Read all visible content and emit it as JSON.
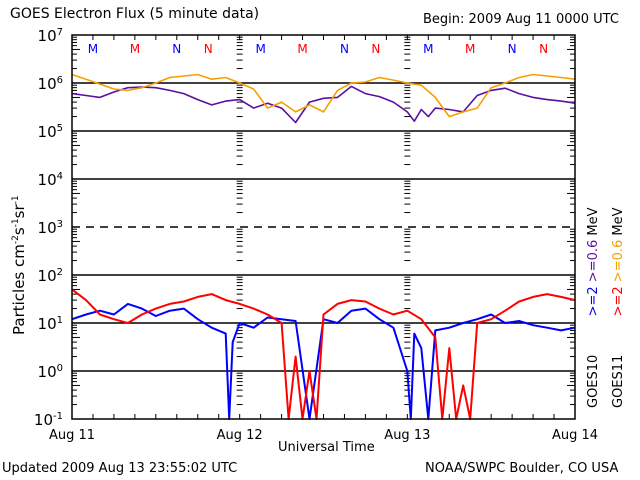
{
  "chart_data": {
    "type": "line",
    "title": "GOES Electron Flux (5 minute data)",
    "begin_label": "Begin: 2009 Aug 11 0000 UTC",
    "xlabel": "Universal Time",
    "ylabel": "Particles cm",
    "ylabel_units": [
      "-2",
      "s",
      "-1",
      "sr",
      "-1"
    ],
    "yscale": "log",
    "ylim": [
      0.1,
      10000000
    ],
    "y_ticks": [
      {
        "base": "10",
        "exp": "7",
        "value": 10000000
      },
      {
        "base": "10",
        "exp": "6",
        "value": 1000000
      },
      {
        "base": "10",
        "exp": "5",
        "value": 100000
      },
      {
        "base": "10",
        "exp": "4",
        "value": 10000
      },
      {
        "base": "10",
        "exp": "3",
        "value": 1000
      },
      {
        "base": "10",
        "exp": "2",
        "value": 100
      },
      {
        "base": "10",
        "exp": "1",
        "value": 10
      },
      {
        "base": "10",
        "exp": "0",
        "value": 1
      },
      {
        "base": "10",
        "exp": "-1",
        "value": 0.1
      }
    ],
    "x_range_hours": [
      0,
      72
    ],
    "x_ticks": [
      {
        "label": "Aug 11",
        "hour": 0
      },
      {
        "label": "Aug 12",
        "hour": 24
      },
      {
        "label": "Aug 13",
        "hour": 48
      },
      {
        "label": "Aug 14",
        "hour": 72
      }
    ],
    "grid": {
      "solid": [
        1000000,
        100000,
        10000,
        100,
        10,
        1
      ],
      "dashed": [
        1000
      ]
    },
    "day_markers": [
      {
        "label": "M",
        "hour": 3,
        "color": "#0000ff"
      },
      {
        "label": "M",
        "hour": 9,
        "color": "#ff0000"
      },
      {
        "label": "N",
        "hour": 15,
        "color": "#0000ff"
      },
      {
        "label": "N",
        "hour": 19.5,
        "color": "#ff0000"
      },
      {
        "label": "M",
        "hour": 27,
        "color": "#0000ff"
      },
      {
        "label": "M",
        "hour": 33,
        "color": "#ff0000"
      },
      {
        "label": "N",
        "hour": 39,
        "color": "#0000ff"
      },
      {
        "label": "N",
        "hour": 43.5,
        "color": "#ff0000"
      },
      {
        "label": "M",
        "hour": 51,
        "color": "#0000ff"
      },
      {
        "label": "M",
        "hour": 57,
        "color": "#ff0000"
      },
      {
        "label": "N",
        "hour": 63,
        "color": "#0000ff"
      },
      {
        "label": "N",
        "hour": 67.5,
        "color": "#ff0000"
      }
    ],
    "legend": [
      {
        "satellite": "GOES10",
        "channels": [
          {
            "label": ">=2",
            "color": "#0000ff"
          },
          {
            "label": ">=0.6",
            "color": "#5a0fa0"
          }
        ],
        "unit": "MeV"
      },
      {
        "satellite": "GOES11",
        "channels": [
          {
            "label": ">=2",
            "color": "#ff0000"
          },
          {
            "label": ">=0.6",
            "color": "#f5a000"
          }
        ],
        "unit": "MeV"
      }
    ],
    "series": [
      {
        "name": "GOES10 >=0.6 MeV",
        "color": "#5a0fa0",
        "hours": [
          0,
          2,
          4,
          6,
          8,
          10,
          12,
          14,
          16,
          18,
          20,
          22,
          24,
          26,
          28,
          30,
          32,
          34,
          36,
          38,
          40,
          42,
          44,
          46,
          48,
          49,
          50,
          51,
          52,
          54,
          56,
          58,
          60,
          62,
          64,
          66,
          68,
          70,
          72
        ],
        "values": [
          600000,
          550000,
          500000,
          650000,
          800000,
          820000,
          800000,
          700000,
          600000,
          450000,
          350000,
          420000,
          450000,
          300000,
          380000,
          300000,
          150000,
          400000,
          480000,
          500000,
          850000,
          600000,
          520000,
          400000,
          250000,
          160000,
          280000,
          200000,
          300000,
          280000,
          250000,
          550000,
          700000,
          780000,
          600000,
          500000,
          450000,
          420000,
          380000
        ]
      },
      {
        "name": "GOES11 >=0.6 MeV",
        "color": "#f5a000",
        "hours": [
          0,
          2,
          4,
          6,
          8,
          10,
          12,
          14,
          16,
          18,
          20,
          22,
          24,
          26,
          28,
          30,
          32,
          34,
          36,
          38,
          40,
          42,
          44,
          46,
          48,
          50,
          52,
          54,
          56,
          58,
          60,
          62,
          64,
          66,
          68,
          70,
          72
        ],
        "values": [
          1500000,
          1200000,
          950000,
          750000,
          700000,
          800000,
          1000000,
          1300000,
          1400000,
          1500000,
          1200000,
          1300000,
          1000000,
          750000,
          300000,
          400000,
          250000,
          350000,
          250000,
          700000,
          1000000,
          1050000,
          1300000,
          1150000,
          1000000,
          900000,
          500000,
          200000,
          250000,
          300000,
          800000,
          1000000,
          1300000,
          1500000,
          1400000,
          1300000,
          1200000
        ]
      },
      {
        "name": "GOES10 >=2 MeV",
        "color": "#0000ff",
        "hours": [
          0,
          2,
          4,
          6,
          8,
          10,
          12,
          14,
          16,
          18,
          20,
          22,
          22.5,
          23,
          24,
          26,
          28,
          30,
          32,
          34,
          36,
          38,
          40,
          42,
          44,
          46,
          48,
          48.5,
          49,
          50,
          51,
          52,
          54,
          56,
          58,
          60,
          62,
          64,
          66,
          68,
          70,
          72
        ],
        "values": [
          12,
          15,
          18,
          15,
          25,
          20,
          14,
          18,
          20,
          12,
          8,
          6,
          0.1,
          4,
          10,
          8,
          13,
          12,
          11,
          0.1,
          12,
          10,
          18,
          20,
          12,
          8,
          1,
          0.1,
          6,
          3,
          0.1,
          7,
          8,
          10,
          12,
          15,
          10,
          11,
          9,
          8,
          7,
          8
        ]
      },
      {
        "name": "GOES11 >=2 MeV",
        "color": "#ff0000",
        "hours": [
          0,
          2,
          4,
          6,
          8,
          10,
          12,
          14,
          16,
          18,
          20,
          22,
          24,
          26,
          28,
          30,
          31,
          32,
          33,
          34,
          35,
          36,
          38,
          40,
          42,
          44,
          46,
          48,
          50,
          52,
          53,
          54,
          55,
          56,
          57,
          58,
          60,
          62,
          64,
          66,
          68,
          70,
          72
        ],
        "values": [
          50,
          30,
          15,
          12,
          10,
          15,
          20,
          25,
          28,
          35,
          40,
          30,
          25,
          20,
          15,
          10,
          0.1,
          2,
          0.1,
          1,
          0.1,
          15,
          25,
          30,
          28,
          20,
          15,
          18,
          12,
          5,
          0.1,
          3,
          0.1,
          0.5,
          0.1,
          10,
          12,
          18,
          28,
          35,
          40,
          35,
          30
        ]
      }
    ]
  },
  "footer": {
    "updated": "Updated 2009 Aug 13 23:55:02 UTC",
    "credit": "NOAA/SWPC Boulder, CO USA"
  }
}
